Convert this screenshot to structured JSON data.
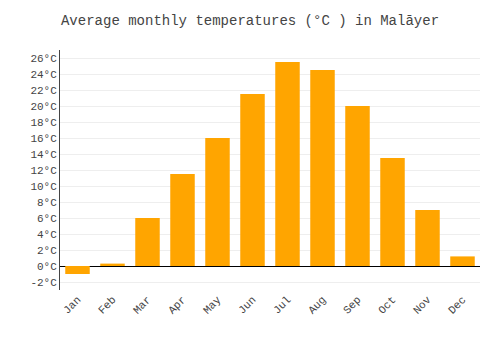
{
  "chart_data": {
    "type": "bar",
    "title": "Average monthly temperatures (°C ) in Malāyer",
    "categories": [
      "Jan",
      "Feb",
      "Mar",
      "Apr",
      "May",
      "Jun",
      "Jul",
      "Aug",
      "Sep",
      "Oct",
      "Nov",
      "Dec"
    ],
    "values": [
      -1.0,
      0.3,
      6.0,
      11.5,
      16.0,
      21.5,
      25.5,
      24.5,
      20.0,
      13.5,
      7.0,
      1.2
    ],
    "color": "#FFA500",
    "ylim": [
      -3,
      27
    ],
    "yticks": [
      {
        "value": -2,
        "label": "-2°C"
      },
      {
        "value": 0,
        "label": "0°C"
      },
      {
        "value": 2,
        "label": "2°C"
      },
      {
        "value": 4,
        "label": "4°C"
      },
      {
        "value": 6,
        "label": "6°C"
      },
      {
        "value": 8,
        "label": "8°C"
      },
      {
        "value": 10,
        "label": "10°C"
      },
      {
        "value": 12,
        "label": "12°C"
      },
      {
        "value": 14,
        "label": "14°C"
      },
      {
        "value": 16,
        "label": "16°C"
      },
      {
        "value": 18,
        "label": "18°C"
      },
      {
        "value": 20,
        "label": "20°C"
      },
      {
        "value": 22,
        "label": "22°C"
      },
      {
        "value": 24,
        "label": "24°C"
      },
      {
        "value": 26,
        "label": "26°C"
      }
    ],
    "grid": true
  }
}
